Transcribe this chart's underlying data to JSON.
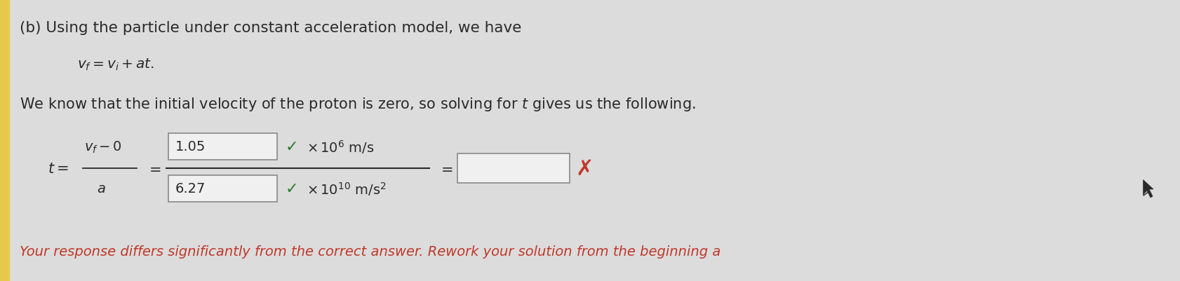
{
  "bg_color": "#dcdcdc",
  "left_bar_color": "#e8c84a",
  "text_color": "#2a2a2a",
  "red_color": "#c0392b",
  "green_color": "#2d7a2d",
  "box_bg": "#f0f0f0",
  "box_border": "#888888",
  "line1": "(b) Using the particle under constant acceleration model, we have",
  "line2": "$v_f = v_i + at.$",
  "line3": "We know that the initial velocity of the proton is zero, so solving for $t$ gives us the following.",
  "box_top_value": "1.05",
  "box_bot_value": "6.27",
  "red_message": "Your response differs significantly from the correct answer. Rework your solution from the beginning a"
}
